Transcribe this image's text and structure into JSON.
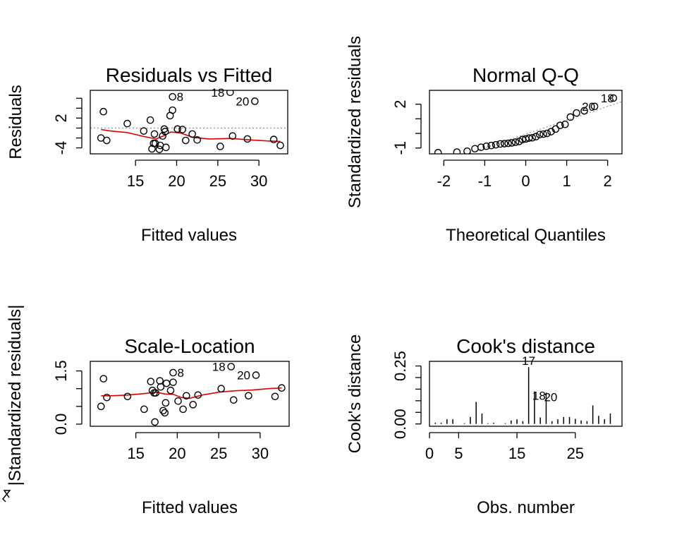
{
  "chart_data": [
    {
      "id": "p1",
      "type": "scatter",
      "title": "Residuals vs Fitted",
      "xlabel": "Fitted values",
      "ylabel": "Residuals",
      "xlim": [
        9.5,
        33.5
      ],
      "ylim": [
        -5.2,
        7.6
      ],
      "xticks": [
        15,
        20,
        25,
        30
      ],
      "yticks": [
        -4,
        -2,
        0,
        2,
        4,
        6
      ],
      "yticklabels": [
        {
          "v": -4,
          "t": "-4"
        },
        {
          "v": 2,
          "t": "2"
        }
      ],
      "refline": "h0",
      "points": [
        [
          10.8,
          -2.0
        ],
        [
          11.1,
          3.3
        ],
        [
          11.5,
          -2.5
        ],
        [
          14.0,
          0.9
        ],
        [
          16.0,
          -0.6
        ],
        [
          16.8,
          1.6
        ],
        [
          17.0,
          -4.2
        ],
        [
          17.2,
          -3.1
        ],
        [
          17.3,
          -1.2
        ],
        [
          17.4,
          -3.1
        ],
        [
          17.9,
          -4.3
        ],
        [
          18.0,
          -3.5
        ],
        [
          18.3,
          -1.6
        ],
        [
          18.5,
          -0.2
        ],
        [
          18.6,
          -0.7
        ],
        [
          18.7,
          -3.9
        ],
        [
          19.2,
          2.5
        ],
        [
          19.5,
          3.6
        ],
        [
          19.5,
          6.3
        ],
        [
          20.1,
          -0.2
        ],
        [
          20.7,
          -0.3
        ],
        [
          21.1,
          -2.5
        ],
        [
          21.9,
          -1.2
        ],
        [
          22.5,
          -2.4
        ],
        [
          25.3,
          -3.7
        ],
        [
          26.5,
          7.2
        ],
        [
          26.8,
          -1.6
        ],
        [
          28.6,
          -2.2
        ],
        [
          29.5,
          5.4
        ],
        [
          31.8,
          -2.3
        ],
        [
          32.6,
          -3.5
        ]
      ],
      "smooth": [
        [
          10.8,
          -0.3
        ],
        [
          12.0,
          -0.6
        ],
        [
          14.0,
          -0.9
        ],
        [
          16.0,
          -1.7
        ],
        [
          17.5,
          -2.2
        ],
        [
          18.5,
          -1.5
        ],
        [
          19.3,
          -0.8
        ],
        [
          20.5,
          -1.0
        ],
        [
          22.0,
          -1.9
        ],
        [
          24.0,
          -2.2
        ],
        [
          26.5,
          -2.1
        ],
        [
          29.0,
          -2.4
        ],
        [
          31.0,
          -2.6
        ],
        [
          32.6,
          -2.7
        ]
      ],
      "annotations": [
        {
          "label": "8",
          "x": 19.5,
          "y": 6.3
        },
        {
          "label": "18",
          "x": 26.5,
          "y": 7.2
        },
        {
          "label": "20",
          "x": 29.5,
          "y": 5.4
        }
      ]
    },
    {
      "id": "p2",
      "type": "scatter",
      "title": "Normal Q-Q",
      "xlabel": "Theoretical Quantiles",
      "ylabel": "Standardized residuals",
      "xlim": [
        -2.35,
        2.35
      ],
      "ylim": [
        -1.4,
        2.95
      ],
      "xticks": [
        -2,
        -1,
        0,
        1,
        2
      ],
      "yticks": [
        -1,
        0,
        1,
        2
      ],
      "yticklabels": [
        {
          "v": -1,
          "t": "-1"
        },
        {
          "v": 2,
          "t": "2"
        }
      ],
      "refline": "qq",
      "qq_line": {
        "intercept": -0.05,
        "slope": 0.95
      },
      "points": [
        [
          -2.14,
          -1.32
        ],
        [
          -1.68,
          -1.28
        ],
        [
          -1.43,
          -1.22
        ],
        [
          -1.24,
          -1.05
        ],
        [
          -1.09,
          -0.95
        ],
        [
          -0.96,
          -0.88
        ],
        [
          -0.84,
          -0.83
        ],
        [
          -0.73,
          -0.78
        ],
        [
          -0.62,
          -0.72
        ],
        [
          -0.52,
          -0.7
        ],
        [
          -0.43,
          -0.68
        ],
        [
          -0.34,
          -0.65
        ],
        [
          -0.25,
          -0.6
        ],
        [
          -0.16,
          -0.55
        ],
        [
          -0.08,
          -0.42
        ],
        [
          0.0,
          -0.38
        ],
        [
          0.08,
          -0.32
        ],
        [
          0.16,
          -0.3
        ],
        [
          0.25,
          -0.22
        ],
        [
          0.34,
          -0.08
        ],
        [
          0.43,
          -0.05
        ],
        [
          0.52,
          0.0
        ],
        [
          0.62,
          0.12
        ],
        [
          0.73,
          0.3
        ],
        [
          0.84,
          0.55
        ],
        [
          0.96,
          0.62
        ],
        [
          1.09,
          1.12
        ],
        [
          1.24,
          1.4
        ],
        [
          1.43,
          1.55
        ],
        [
          1.68,
          1.85
        ],
        [
          2.14,
          2.42
        ]
      ],
      "annotations": [
        {
          "label": "18",
          "x": 2.14,
          "y": 2.42
        },
        {
          "label": "20",
          "x": 1.68,
          "y": 1.85
        }
      ]
    },
    {
      "id": "p3",
      "type": "scatter",
      "title": "Scale-Location",
      "xlabel": "Fitted values",
      "ylabel": "√|Standardized residuals|",
      "ylabel_display": "|Standardized residuals|",
      "xlim": [
        9.5,
        33.5
      ],
      "ylim": [
        -0.06,
        1.77
      ],
      "xticks": [
        15,
        20,
        25,
        30
      ],
      "yticks": [
        0.0,
        0.5,
        1.0,
        1.5
      ],
      "yticklabels": [
        {
          "v": 0.0,
          "t": "0.0"
        },
        {
          "v": 1.5,
          "t": "1.5"
        }
      ],
      "refline": "none",
      "points": [
        [
          10.8,
          0.5
        ],
        [
          11.1,
          1.28
        ],
        [
          11.5,
          0.75
        ],
        [
          14.0,
          0.78
        ],
        [
          16.0,
          0.42
        ],
        [
          16.8,
          1.2
        ],
        [
          17.0,
          0.95
        ],
        [
          17.2,
          0.88
        ],
        [
          17.3,
          0.06
        ],
        [
          17.4,
          0.88
        ],
        [
          17.9,
          1.22
        ],
        [
          18.0,
          1.05
        ],
        [
          18.3,
          0.38
        ],
        [
          18.5,
          0.32
        ],
        [
          18.6,
          0.6
        ],
        [
          18.7,
          1.15
        ],
        [
          19.2,
          0.95
        ],
        [
          19.5,
          1.45
        ],
        [
          19.5,
          1.18
        ],
        [
          20.1,
          0.65
        ],
        [
          20.7,
          0.42
        ],
        [
          21.1,
          0.8
        ],
        [
          21.9,
          0.55
        ],
        [
          22.5,
          0.82
        ],
        [
          25.3,
          1.0
        ],
        [
          26.5,
          1.62
        ],
        [
          26.8,
          0.68
        ],
        [
          28.6,
          0.8
        ],
        [
          29.5,
          1.38
        ],
        [
          31.8,
          0.78
        ],
        [
          32.6,
          1.02
        ]
      ],
      "smooth": [
        [
          10.8,
          0.8
        ],
        [
          12.0,
          0.8
        ],
        [
          14.0,
          0.82
        ],
        [
          16.0,
          0.86
        ],
        [
          17.5,
          0.9
        ],
        [
          18.5,
          0.85
        ],
        [
          19.5,
          0.84
        ],
        [
          20.5,
          0.75
        ],
        [
          21.5,
          0.73
        ],
        [
          23.0,
          0.82
        ],
        [
          25.0,
          0.9
        ],
        [
          27.0,
          0.94
        ],
        [
          29.0,
          0.96
        ],
        [
          31.0,
          1.0
        ],
        [
          32.6,
          1.02
        ]
      ],
      "annotations": [
        {
          "label": "8",
          "x": 19.5,
          "y": 1.45
        },
        {
          "label": "18",
          "x": 26.5,
          "y": 1.62
        },
        {
          "label": "20",
          "x": 29.5,
          "y": 1.38
        }
      ]
    },
    {
      "id": "p4",
      "type": "bar",
      "title": "Cook's distance",
      "xlabel": "Obs. number",
      "ylabel": "Cook's distance",
      "xlim": [
        0,
        33
      ],
      "ylim": [
        -0.01,
        0.27
      ],
      "xticks": [
        0,
        5,
        15,
        25
      ],
      "yticks": [
        0.0,
        0.05,
        0.1,
        0.15,
        0.2,
        0.25
      ],
      "yticklabels": [
        {
          "v": 0.0,
          "t": "0.00"
        },
        {
          "v": 0.25,
          "t": "0.25"
        }
      ],
      "x": [
        1,
        2,
        3,
        4,
        5,
        6,
        7,
        8,
        9,
        10,
        11,
        12,
        13,
        14,
        15,
        16,
        17,
        18,
        19,
        20,
        21,
        22,
        23,
        24,
        25,
        26,
        27,
        28,
        29,
        30,
        31
      ],
      "values": [
        0.005,
        0.005,
        0.02,
        0.02,
        0.0,
        0.003,
        0.03,
        0.095,
        0.045,
        0.003,
        0.005,
        0.0,
        0.003,
        0.015,
        0.02,
        0.012,
        0.245,
        0.14,
        0.028,
        0.135,
        0.012,
        0.02,
        0.03,
        0.03,
        0.022,
        0.015,
        0.012,
        0.08,
        0.035,
        0.02,
        0.045
      ],
      "annotations": [
        {
          "label": "17",
          "x": 17,
          "y": 0.245
        },
        {
          "label": "18",
          "x": 18,
          "y": 0.14
        },
        {
          "label": "20",
          "x": 20,
          "y": 0.135
        }
      ]
    }
  ]
}
